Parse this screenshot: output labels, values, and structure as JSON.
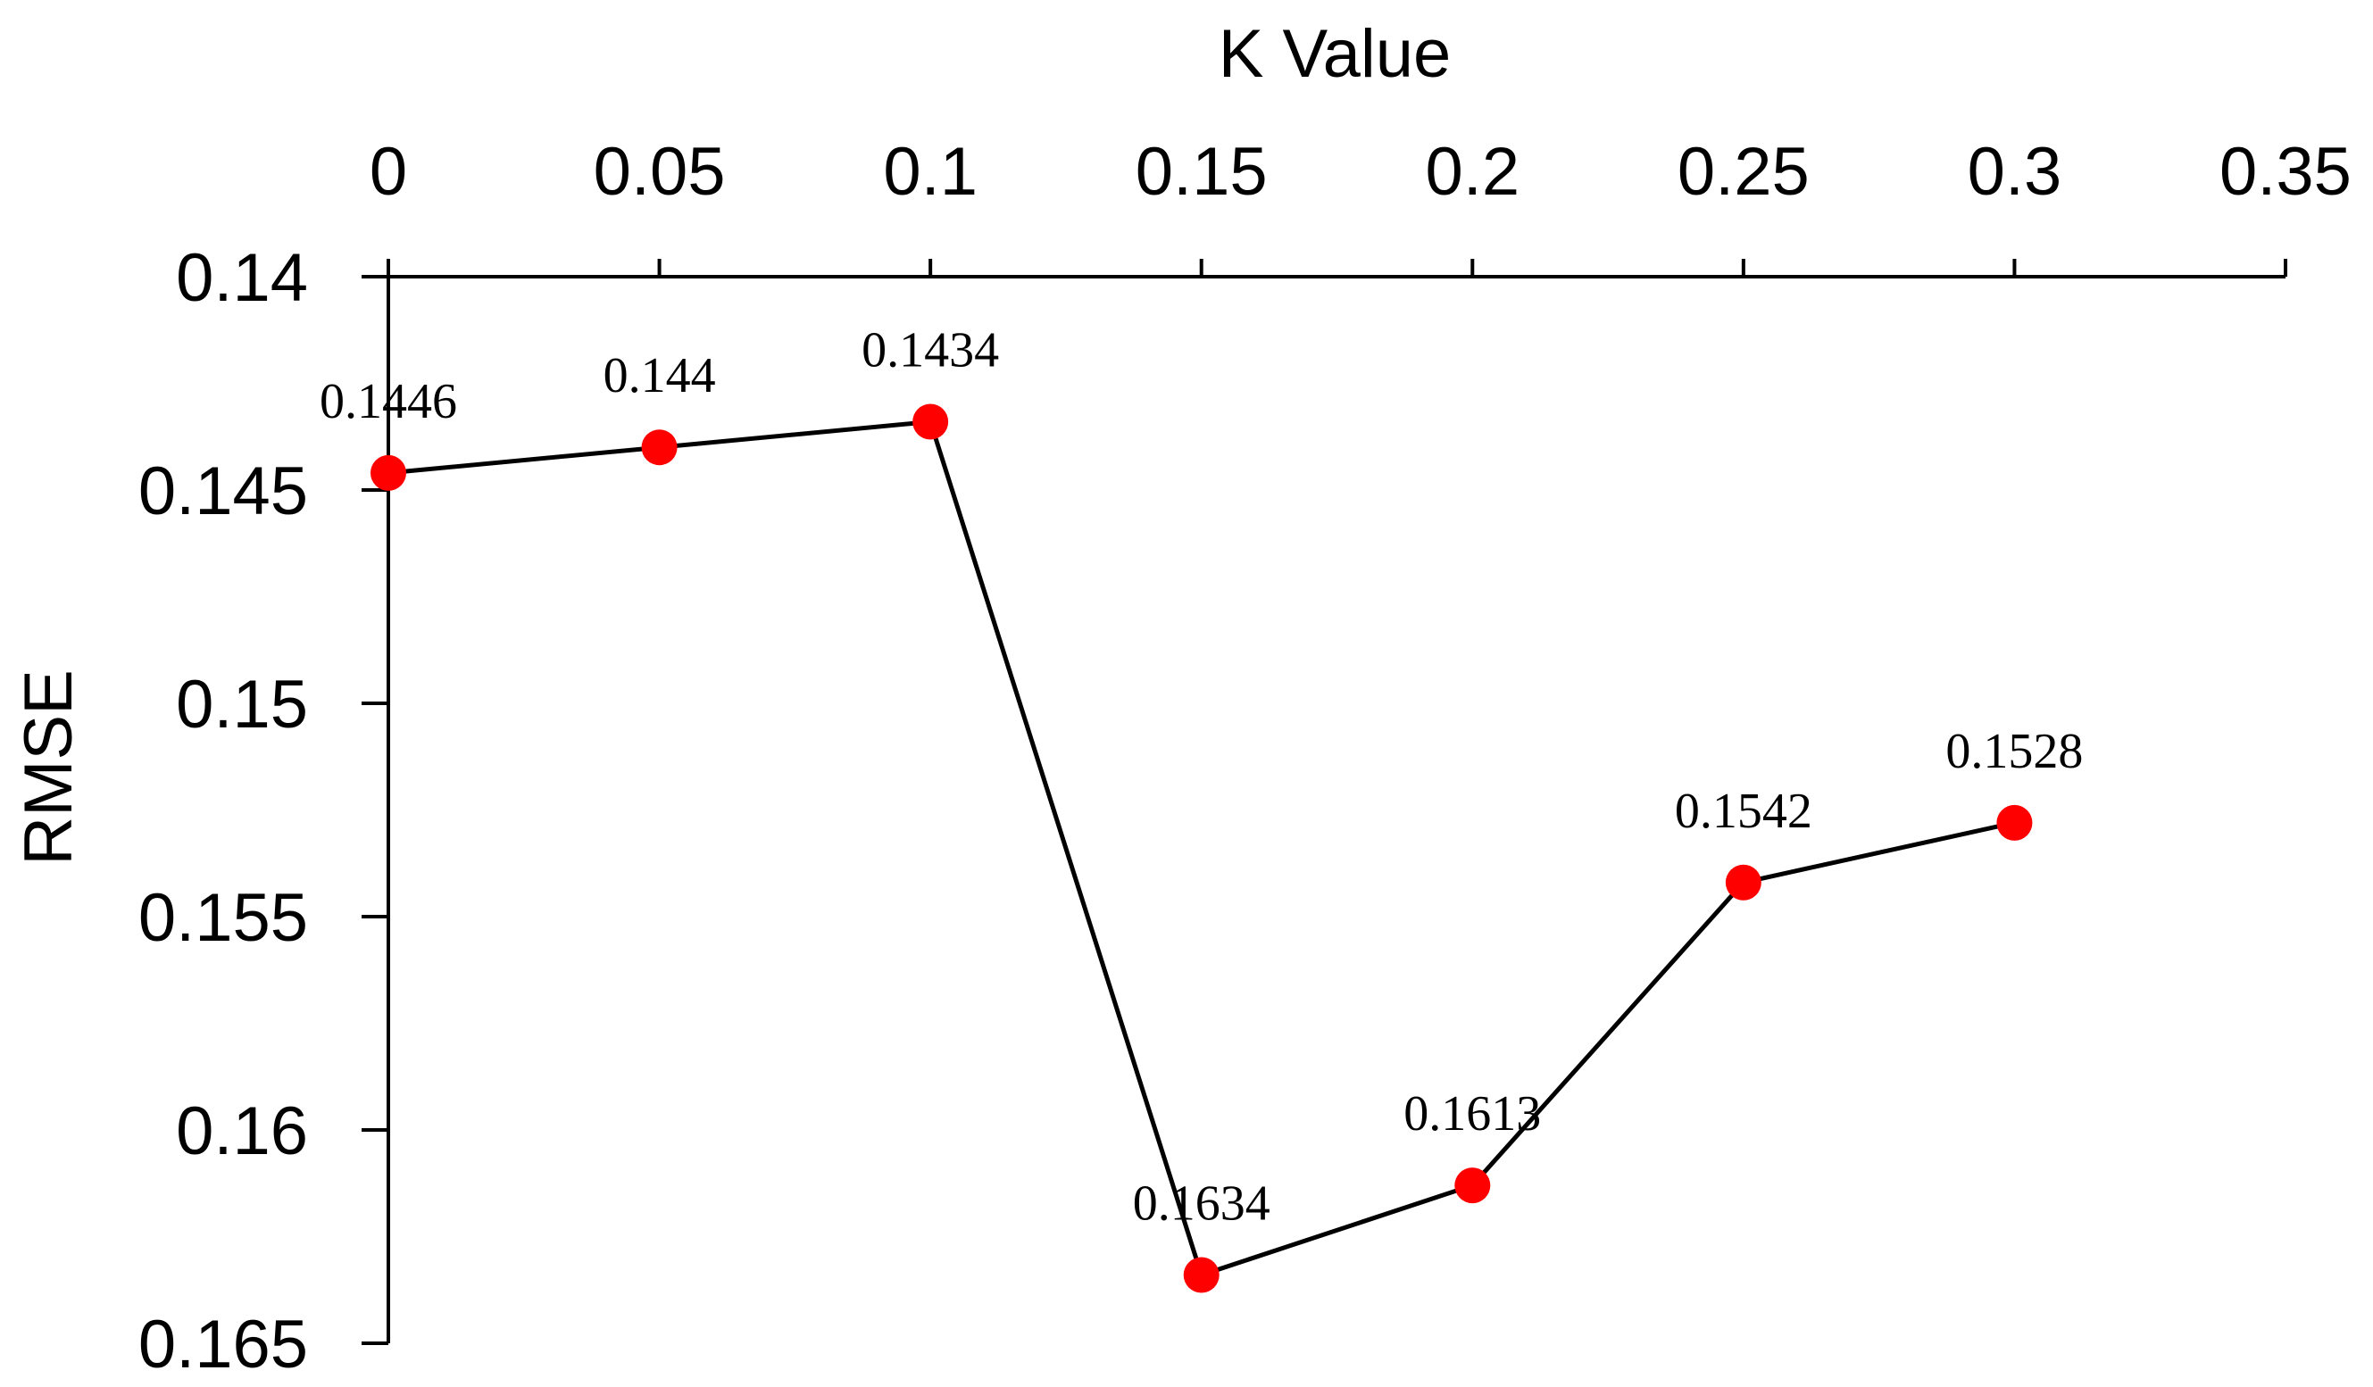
{
  "chart_data": {
    "type": "line",
    "xlabel": "K Value",
    "ylabel": "RMSE",
    "x_axis_position": "top",
    "y_axis_inverted": true,
    "xlim": [
      0,
      0.35
    ],
    "ylim": [
      0.14,
      0.165
    ],
    "x_ticks": [
      "0",
      "0.05",
      "0.1",
      "0.15",
      "0.2",
      "0.25",
      "0.3",
      "0.35"
    ],
    "y_ticks": [
      "0.14",
      "0.145",
      "0.15",
      "0.155",
      "0.16",
      "0.165"
    ],
    "grid": false,
    "legend": "none",
    "marker_color": "#ff0000",
    "line_color": "#000000",
    "series": [
      {
        "x": [
          0,
          0.05,
          0.1,
          0.15,
          0.2,
          0.25,
          0.3
        ],
        "values": [
          0.1446,
          0.144,
          0.1434,
          0.1634,
          0.1613,
          0.1542,
          0.1528
        ],
        "data_labels": [
          "0.1446",
          "0.144",
          "0.1434",
          "0.1634",
          "0.1613",
          "0.1542",
          "0.1528"
        ]
      }
    ]
  }
}
